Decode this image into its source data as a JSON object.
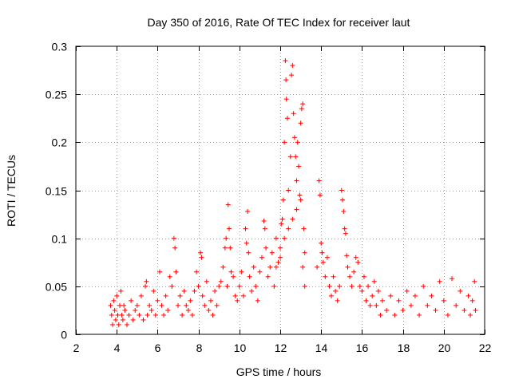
{
  "chart_data": {
    "type": "scatter",
    "title": "Day 350 of 2016, Rate Of TEC Index for receiver laut",
    "xlabel": "GPS time / hours",
    "ylabel": "ROTI / TECUs",
    "xlim": [
      2,
      22
    ],
    "ylim": [
      0,
      0.3
    ],
    "x_ticks": [
      2,
      4,
      6,
      8,
      10,
      12,
      14,
      16,
      18,
      20,
      22
    ],
    "y_ticks": [
      0,
      0.05,
      0.1,
      0.15,
      0.2,
      0.25,
      0.3
    ],
    "x_tick_labels": [
      "2",
      "4",
      "6",
      "8",
      "10",
      "12",
      "14",
      "16",
      "18",
      "20",
      "22"
    ],
    "y_tick_labels": [
      "0",
      "0.05",
      "0.1",
      "0.15",
      "0.2",
      "0.25",
      "0.3"
    ],
    "grid": true,
    "marker": "+",
    "color": "#ff0000",
    "series": [
      {
        "name": "ROTI",
        "points": [
          [
            3.7,
            0.03
          ],
          [
            3.75,
            0.02
          ],
          [
            3.8,
            0.01
          ],
          [
            3.85,
            0.035
          ],
          [
            3.9,
            0.025
          ],
          [
            3.95,
            0.015
          ],
          [
            4.0,
            0.04
          ],
          [
            4.05,
            0.02
          ],
          [
            4.1,
            0.01
          ],
          [
            4.15,
            0.03
          ],
          [
            4.2,
            0.045
          ],
          [
            4.25,
            0.02
          ],
          [
            4.3,
            0.015
          ],
          [
            4.35,
            0.03
          ],
          [
            4.4,
            0.025
          ],
          [
            4.5,
            0.01
          ],
          [
            4.6,
            0.02
          ],
          [
            4.7,
            0.035
          ],
          [
            4.8,
            0.015
          ],
          [
            4.9,
            0.025
          ],
          [
            5.0,
            0.03
          ],
          [
            5.1,
            0.02
          ],
          [
            5.2,
            0.04
          ],
          [
            5.3,
            0.015
          ],
          [
            5.4,
            0.05
          ],
          [
            5.45,
            0.055
          ],
          [
            5.5,
            0.02
          ],
          [
            5.6,
            0.03
          ],
          [
            5.7,
            0.025
          ],
          [
            5.8,
            0.045
          ],
          [
            5.9,
            0.02
          ],
          [
            6.0,
            0.035
          ],
          [
            6.1,
            0.065
          ],
          [
            6.2,
            0.03
          ],
          [
            6.3,
            0.02
          ],
          [
            6.4,
            0.04
          ],
          [
            6.5,
            0.025
          ],
          [
            6.6,
            0.06
          ],
          [
            6.7,
            0.05
          ],
          [
            6.8,
            0.1
          ],
          [
            6.85,
            0.09
          ],
          [
            6.9,
            0.065
          ],
          [
            7.0,
            0.03
          ],
          [
            7.1,
            0.04
          ],
          [
            7.2,
            0.02
          ],
          [
            7.3,
            0.045
          ],
          [
            7.4,
            0.03
          ],
          [
            7.5,
            0.025
          ],
          [
            7.6,
            0.035
          ],
          [
            7.7,
            0.02
          ],
          [
            7.8,
            0.045
          ],
          [
            7.9,
            0.065
          ],
          [
            8.0,
            0.05
          ],
          [
            8.1,
            0.085
          ],
          [
            8.15,
            0.08
          ],
          [
            8.2,
            0.04
          ],
          [
            8.3,
            0.03
          ],
          [
            8.4,
            0.055
          ],
          [
            8.5,
            0.025
          ],
          [
            8.6,
            0.035
          ],
          [
            8.7,
            0.02
          ],
          [
            8.8,
            0.045
          ],
          [
            8.9,
            0.03
          ],
          [
            9.0,
            0.05
          ],
          [
            9.1,
            0.055
          ],
          [
            9.2,
            0.07
          ],
          [
            9.3,
            0.09
          ],
          [
            9.35,
            0.1
          ],
          [
            9.4,
            0.05
          ],
          [
            9.45,
            0.135
          ],
          [
            9.5,
            0.11
          ],
          [
            9.55,
            0.09
          ],
          [
            9.6,
            0.065
          ],
          [
            9.7,
            0.06
          ],
          [
            9.8,
            0.04
          ],
          [
            9.9,
            0.035
          ],
          [
            10.0,
            0.05
          ],
          [
            10.1,
            0.065
          ],
          [
            10.2,
            0.04
          ],
          [
            10.3,
            0.11
          ],
          [
            10.35,
            0.095
          ],
          [
            10.4,
            0.128
          ],
          [
            10.45,
            0.085
          ],
          [
            10.5,
            0.06
          ],
          [
            10.6,
            0.045
          ],
          [
            10.7,
            0.07
          ],
          [
            10.8,
            0.05
          ],
          [
            10.9,
            0.035
          ],
          [
            11.0,
            0.065
          ],
          [
            11.1,
            0.08
          ],
          [
            11.2,
            0.118
          ],
          [
            11.25,
            0.11
          ],
          [
            11.3,
            0.09
          ],
          [
            11.4,
            0.06
          ],
          [
            11.5,
            0.07
          ],
          [
            11.6,
            0.085
          ],
          [
            11.7,
            0.05
          ],
          [
            11.8,
            0.1
          ],
          [
            11.9,
            0.075
          ],
          [
            12.0,
            0.09
          ],
          [
            12.05,
            0.115
          ],
          [
            12.1,
            0.12
          ],
          [
            12.15,
            0.14
          ],
          [
            12.2,
            0.2
          ],
          [
            12.25,
            0.285
          ],
          [
            12.28,
            0.265
          ],
          [
            12.3,
            0.245
          ],
          [
            12.35,
            0.225
          ],
          [
            12.4,
            0.15
          ],
          [
            12.5,
            0.185
          ],
          [
            12.55,
            0.27
          ],
          [
            12.6,
            0.28
          ],
          [
            12.65,
            0.23
          ],
          [
            12.7,
            0.205
          ],
          [
            12.75,
            0.185
          ],
          [
            12.8,
            0.16
          ],
          [
            12.85,
            0.2
          ],
          [
            12.9,
            0.175
          ],
          [
            12.95,
            0.145
          ],
          [
            13.0,
            0.22
          ],
          [
            13.05,
            0.235
          ],
          [
            13.1,
            0.24
          ],
          [
            13.15,
            0.11
          ],
          [
            13.2,
            0.085
          ],
          [
            13.0,
            0.14
          ],
          [
            12.8,
            0.13
          ],
          [
            12.6,
            0.12
          ],
          [
            12.4,
            0.11
          ],
          [
            12.2,
            0.1
          ],
          [
            12.0,
            0.08
          ],
          [
            11.8,
            0.07
          ],
          [
            13.1,
            0.07
          ],
          [
            13.2,
            0.05
          ],
          [
            13.8,
            0.07
          ],
          [
            13.9,
            0.16
          ],
          [
            13.95,
            0.145
          ],
          [
            14.0,
            0.095
          ],
          [
            14.05,
            0.085
          ],
          [
            14.1,
            0.075
          ],
          [
            14.2,
            0.06
          ],
          [
            14.3,
            0.08
          ],
          [
            14.4,
            0.05
          ],
          [
            14.5,
            0.04
          ],
          [
            14.6,
            0.06
          ],
          [
            14.7,
            0.045
          ],
          [
            14.8,
            0.035
          ],
          [
            14.9,
            0.05
          ],
          [
            15.0,
            0.15
          ],
          [
            15.05,
            0.14
          ],
          [
            15.1,
            0.128
          ],
          [
            15.15,
            0.11
          ],
          [
            15.2,
            0.105
          ],
          [
            15.25,
            0.082
          ],
          [
            15.3,
            0.07
          ],
          [
            15.4,
            0.06
          ],
          [
            15.5,
            0.05
          ],
          [
            15.6,
            0.065
          ],
          [
            15.7,
            0.08
          ],
          [
            15.8,
            0.075
          ],
          [
            15.9,
            0.05
          ],
          [
            16.0,
            0.045
          ],
          [
            16.1,
            0.06
          ],
          [
            16.2,
            0.035
          ],
          [
            16.3,
            0.05
          ],
          [
            16.4,
            0.03
          ],
          [
            16.5,
            0.04
          ],
          [
            16.6,
            0.055
          ],
          [
            16.7,
            0.03
          ],
          [
            16.8,
            0.045
          ],
          [
            16.9,
            0.02
          ],
          [
            17.0,
            0.035
          ],
          [
            17.2,
            0.025
          ],
          [
            17.4,
            0.04
          ],
          [
            17.6,
            0.02
          ],
          [
            17.8,
            0.035
          ],
          [
            18.0,
            0.025
          ],
          [
            18.2,
            0.045
          ],
          [
            18.4,
            0.03
          ],
          [
            18.6,
            0.04
          ],
          [
            18.8,
            0.02
          ],
          [
            19.0,
            0.05
          ],
          [
            19.2,
            0.03
          ],
          [
            19.4,
            0.04
          ],
          [
            19.6,
            0.025
          ],
          [
            19.8,
            0.055
          ],
          [
            20.0,
            0.035
          ],
          [
            20.2,
            0.02
          ],
          [
            20.4,
            0.058
          ],
          [
            20.6,
            0.03
          ],
          [
            20.8,
            0.045
          ],
          [
            21.0,
            0.025
          ],
          [
            21.2,
            0.04
          ],
          [
            21.3,
            0.02
          ],
          [
            21.4,
            0.035
          ],
          [
            21.5,
            0.055
          ],
          [
            21.55,
            0.025
          ]
        ]
      }
    ]
  }
}
